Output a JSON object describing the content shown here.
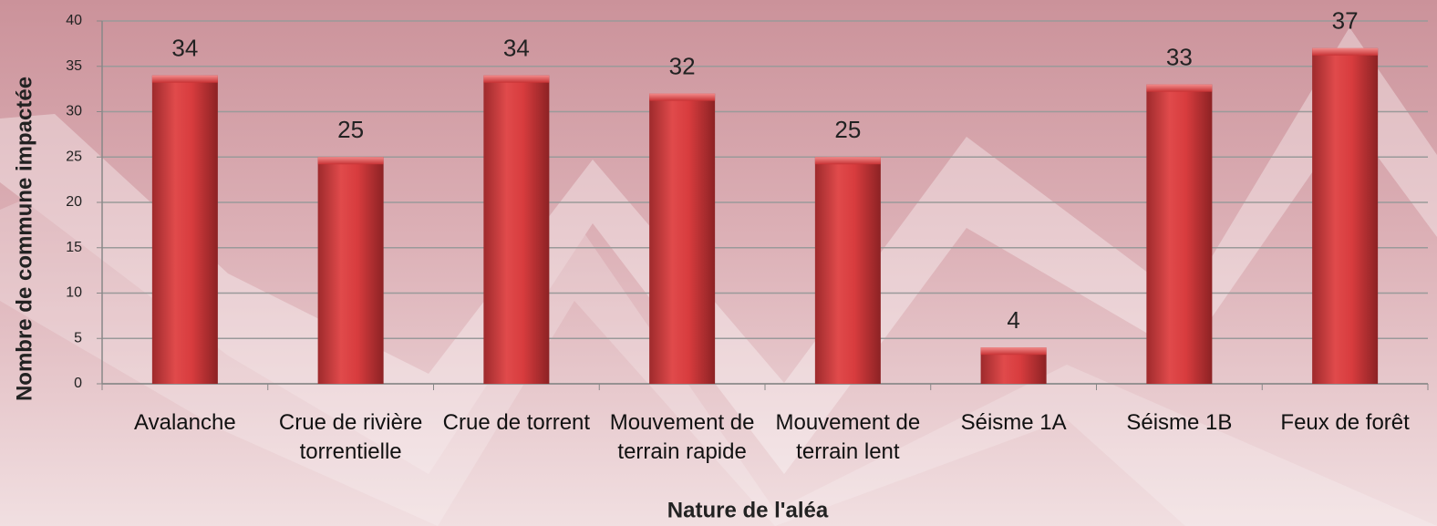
{
  "chart_data": {
    "type": "bar",
    "x_label": "Nature de l'aléa",
    "y_label": "Nombre de commune impactée",
    "categories": [
      "Avalanche",
      "Crue de rivière torrentielle",
      "Crue de torrent",
      "Mouvement de terrain rapide",
      "Mouvement de terrain lent",
      "Séisme 1A",
      "Séisme 1B",
      "Feux de forêt"
    ],
    "values": [
      34,
      25,
      34,
      32,
      25,
      4,
      33,
      37
    ],
    "color": "#d83c3e",
    "ylim": [
      0,
      40
    ],
    "yticks": [
      0,
      5,
      10,
      15,
      20,
      25,
      30,
      35,
      40
    ],
    "grid": true
  }
}
